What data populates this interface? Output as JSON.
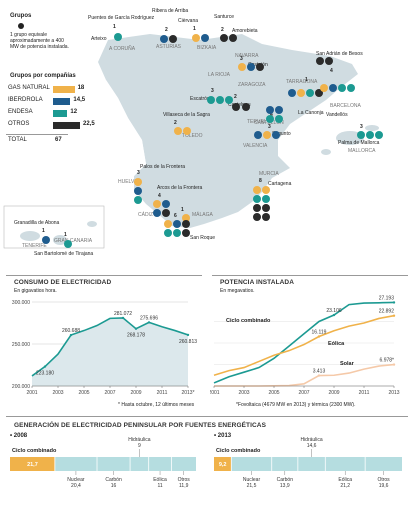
{
  "colors": {
    "gas_natural": "#F0B24A",
    "iberdrola": "#1F5C8E",
    "endesa": "#1C9A92",
    "otros": "#2B2B2B",
    "map_fill": "#D0DCE1",
    "consumo_fill": "#DCE8EC",
    "consumo_line": "#1C9A92",
    "ciclo": "#1C9A92",
    "eolica": "#F0B24A",
    "solar": "#F5C9A8",
    "renovables_bar": "#B5DDE0",
    "grid": "#cccccc"
  },
  "legend": {
    "title": "Grupos",
    "text": "1 grupo equivale aproximadamente a 400 MW de potencia instalada.",
    "companies_title": "Grupos por compañías"
  },
  "companies": [
    {
      "name": "GAS NATURAL",
      "value": 18,
      "color": "gas_natural"
    },
    {
      "name": "IBERDROLA",
      "value": 14.5,
      "label": "14,5",
      "color": "iberdrola"
    },
    {
      "name": "ENDESA",
      "value": 12,
      "color": "endesa"
    },
    {
      "name": "OTROS",
      "value": 22.5,
      "label": "22,5",
      "color": "otros"
    }
  ],
  "total": {
    "label": "TOTAL",
    "value": "67"
  },
  "sites": [
    {
      "name": "Puentes de García Rodríguez",
      "count": "2"
    },
    {
      "name": "Ribera de Arriba",
      "count": "2"
    },
    {
      "name": "Cièrvana",
      "count": "1"
    },
    {
      "name": "Santurce",
      "count": "2"
    },
    {
      "name": "Amorebieta",
      "count": "1"
    },
    {
      "name": "Arteixo",
      "count": "1"
    },
    {
      "name": "A CORUÑA"
    },
    {
      "name": "ASTURIAS"
    },
    {
      "name": "BIZKAIA"
    },
    {
      "name": "NAVARRA"
    },
    {
      "name": "LA RIOJA"
    },
    {
      "name": "Castejón",
      "count": "3"
    },
    {
      "name": "ZARAGOZA"
    },
    {
      "name": "Escatrón",
      "count": "3"
    },
    {
      "name": "Castelnou"
    },
    {
      "name": "TERUEL"
    },
    {
      "name": "San Adrián de Besos",
      "count": "2"
    },
    {
      "name": "TARRAGONA"
    },
    {
      "name": "BARCELONA"
    },
    {
      "name": "Vandellós"
    },
    {
      "name": "La Canonja"
    },
    {
      "name": "Villaseca de la Sagra",
      "count": "2"
    },
    {
      "name": "TOLEDO"
    },
    {
      "name": "CASTELLÓN"
    },
    {
      "name": "Sagunto",
      "count": "3"
    },
    {
      "name": "VALENCIA"
    },
    {
      "name": "Palma de Mallorca",
      "count": "3"
    },
    {
      "name": "MALLORCA"
    },
    {
      "name": "Palos de la Frontera",
      "count": "3"
    },
    {
      "name": "HUELVA"
    },
    {
      "name": "Arcos de la Frontera",
      "count": "4"
    },
    {
      "name": "CÁDIZ"
    },
    {
      "name": "MÁLAGA"
    },
    {
      "name": "San Roque",
      "count": "6"
    },
    {
      "name": "MURCIA"
    },
    {
      "name": "Cartagena",
      "count": "8"
    },
    {
      "name": "Granadilla de Abona",
      "count": "1"
    },
    {
      "name": "TENERIFE"
    },
    {
      "name": "GRAN CANARIA"
    },
    {
      "name": "San Bartolomé de Tirajana",
      "count": "1"
    },
    {
      "name": "Castellón",
      "count": "4"
    },
    {
      "name": "Barcelona",
      "count": "4"
    },
    {
      "name": "Tarragona",
      "count": "1"
    },
    {
      "name": "Málaga",
      "count": "1"
    }
  ],
  "map_counts": [
    "1",
    "1",
    "2",
    "3",
    "2",
    "1"
  ],
  "consumo": {
    "title": "CONSUMO DE ELECTRICIDAD",
    "subtitle": "En gigavatios hora.",
    "note": "* Hasta octubre, 12 últimos meses"
  },
  "potencia": {
    "title": "POTENCIA INSTALADA",
    "subtitle": "En megavatios.",
    "note": "*Fovoltaica (4679 MW en 2013) y térmica (2300 MW)."
  },
  "generacion": {
    "title": "GENERACIÓN DE ELECTRICIDAD PENINSULAR POR FUENTES ENERGÉTICAS"
  },
  "chart_data": [
    {
      "type": "area",
      "title": "CONSUMO DE ELECTRICIDAD",
      "subtitle": "En gigavatios hora.",
      "x": [
        2001,
        2002,
        2003,
        2004,
        2005,
        2006,
        2007,
        2008,
        2009,
        2010,
        2011,
        2012,
        2013
      ],
      "x_tick_labels": [
        "2001",
        "2003",
        "2005",
        "2007",
        "2009",
        "2011",
        "2013*"
      ],
      "values": [
        212000,
        223180,
        238000,
        260688,
        266000,
        272000,
        280500,
        281072,
        268178,
        275696,
        270500,
        266000,
        260813
      ],
      "data_labels": [
        {
          "x": 2002,
          "y": 223180,
          "text": "223.180"
        },
        {
          "x": 2004,
          "y": 260688,
          "text": "260.688"
        },
        {
          "x": 2008,
          "y": 281072,
          "text": "281.072"
        },
        {
          "x": 2009,
          "y": 268178,
          "text": "268.178"
        },
        {
          "x": 2010,
          "y": 275696,
          "text": "275.696"
        },
        {
          "x": 2013,
          "y": 260813,
          "text": "260.813"
        }
      ],
      "y_ticks": [
        "200.000",
        "250.000",
        "300.000"
      ],
      "ylim": [
        200000,
        300000
      ],
      "xlim": [
        2001,
        2013
      ]
    },
    {
      "type": "line",
      "title": "POTENCIA INSTALADA",
      "subtitle": "En megavatios.",
      "x": [
        2001,
        2002,
        2003,
        2004,
        2005,
        2006,
        2007,
        2008,
        2009,
        2010,
        2011,
        2012,
        2013
      ],
      "x_tick_labels": [
        "2001",
        "2003",
        "2005",
        "2007",
        "2009",
        "2011",
        "2013"
      ],
      "series": [
        {
          "name": "Ciclo combinado",
          "values": [
            1000,
            3000,
            4500,
            6000,
            9000,
            13000,
            17000,
            21000,
            23106,
            26500,
            27000,
            27100,
            27193
          ]
        },
        {
          "name": "Eólica",
          "values": [
            3500,
            5000,
            6000,
            8000,
            10000,
            11500,
            13500,
            16119,
            18000,
            19500,
            20500,
            22000,
            22892
          ]
        },
        {
          "name": "Solar",
          "values": [
            0,
            0,
            0,
            0,
            50,
            150,
            700,
            3413,
            3500,
            4200,
            5500,
            6500,
            6978
          ]
        }
      ],
      "data_labels": [
        {
          "series": "Ciclo combinado",
          "x": 2009,
          "y": 23106,
          "text": "23.106"
        },
        {
          "series": "Ciclo combinado",
          "x": 2013,
          "y": 27193,
          "text": "27.193"
        },
        {
          "series": "Eólica",
          "x": 2008,
          "y": 16119,
          "text": "16.119"
        },
        {
          "series": "Eólica",
          "x": 2013,
          "y": 22892,
          "text": "22.892"
        },
        {
          "series": "Solar",
          "x": 2008,
          "y": 3413,
          "text": "3.413"
        },
        {
          "series": "Solar",
          "x": 2013,
          "y": 6978,
          "text": "6.978*"
        }
      ],
      "ylim": [
        0,
        28000
      ],
      "xlim": [
        2001,
        2013
      ]
    },
    {
      "type": "bar",
      "title": "GENERACIÓN DE ELECTRICIDAD PENINSULAR POR FUENTES ENERGÉTICAS",
      "panels": [
        {
          "year": "• 2008",
          "segments": [
            {
              "name": "Ciclo combinado",
              "value": 21.7,
              "label": "21,7"
            },
            {
              "name": "Nuclear",
              "value": 20.4,
              "label": "20,4"
            },
            {
              "name": "Carbón",
              "value": 16,
              "label": "16"
            },
            {
              "name": "Hidráulica",
              "value": 9,
              "label": "9"
            },
            {
              "name": "Eólica",
              "value": 11,
              "label": "11"
            },
            {
              "name": "Otros",
              "value": 11.9,
              "label": "11,9"
            }
          ]
        },
        {
          "year": "• 2013",
          "segments": [
            {
              "name": "Ciclo combinado",
              "value": 9.2,
              "label": "9,2"
            },
            {
              "name": "Nuclear",
              "value": 21.5,
              "label": "21,5"
            },
            {
              "name": "Carbón",
              "value": 13.9,
              "label": "13,9"
            },
            {
              "name": "Hidráulica",
              "value": 14.6,
              "label": "14,6"
            },
            {
              "name": "Eólica",
              "value": 21.2,
              "label": "21,2"
            },
            {
              "name": "Otros",
              "value": 19.6,
              "label": "19,6"
            }
          ]
        }
      ]
    }
  ]
}
